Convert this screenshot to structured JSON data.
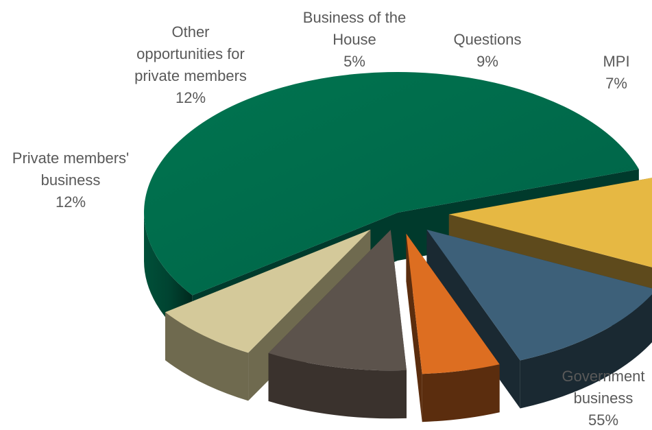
{
  "chart_data": {
    "type": "pie",
    "title": "",
    "exploded": true,
    "three_d": true,
    "legend": "none",
    "slices": [
      {
        "label": "Government business",
        "value": 55,
        "value_label": "55%",
        "color": "#00694f",
        "side_color": "#003a2c"
      },
      {
        "label": "Private members' business",
        "value": 12,
        "value_label": "12%",
        "color": "#e6b843",
        "side_color": "#5e4a1c"
      },
      {
        "label": "Other opportunities for private members",
        "value": 12,
        "value_label": "12%",
        "color": "#3d6079",
        "side_color": "#1a2932"
      },
      {
        "label": "Business of the House",
        "value": 5,
        "value_label": "5%",
        "color": "#dd6e21",
        "side_color": "#5b2d0e"
      },
      {
        "label": "Questions",
        "value": 9,
        "value_label": "9%",
        "color": "#5c534c",
        "side_color": "#3a322d"
      },
      {
        "label": "MPI",
        "value": 7,
        "value_label": "7%",
        "color": "#d4c99a",
        "side_color": "#6f6a4f"
      }
    ]
  }
}
